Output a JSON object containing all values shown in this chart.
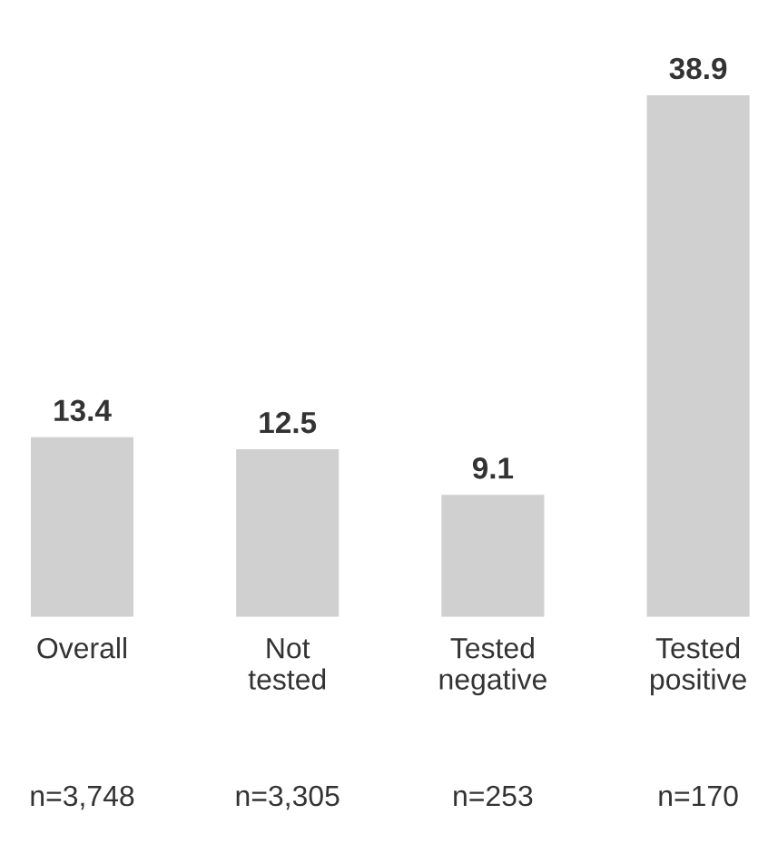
{
  "chart_data": {
    "type": "bar",
    "categories": [
      "Overall",
      "Not\ntested",
      "Tested\nnegative",
      "Tested\npositive"
    ],
    "values": [
      13.4,
      12.5,
      9.1,
      38.9
    ],
    "color": "#cfd0cf",
    "data_labels": true,
    "grid": false,
    "legend": false,
    "annotations": [
      "n=3,748",
      "n=3,305",
      "n=253",
      "n=170"
    ]
  }
}
